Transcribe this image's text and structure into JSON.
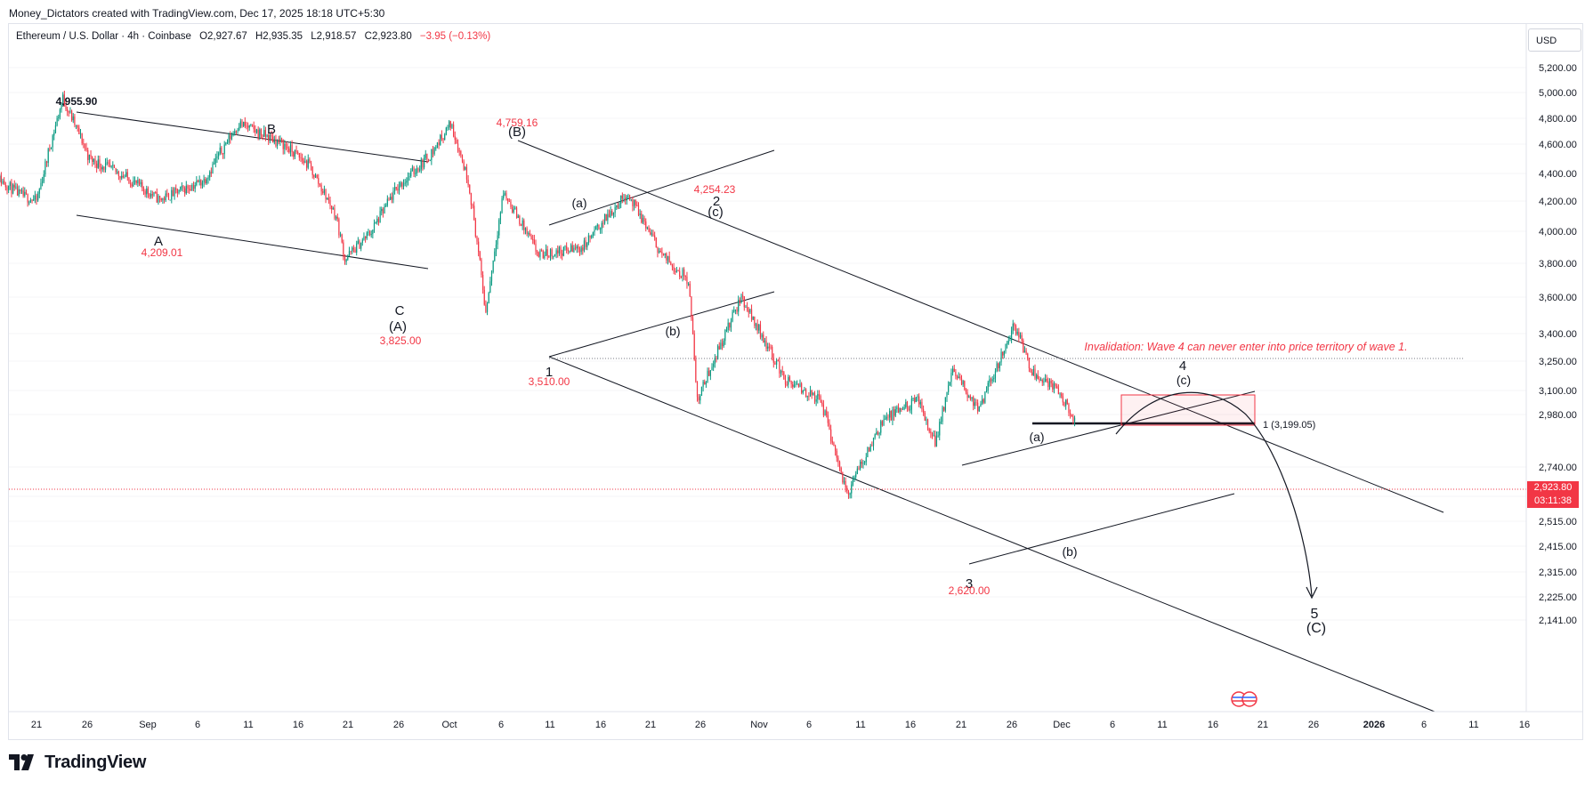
{
  "header": {
    "attribution": "Money_Dictators created with TradingView.com, Dec 17, 2025 18:18 UTC+5:30"
  },
  "legend": {
    "symbol": "Ethereum / U.S. Dollar · 4h · Coinbase",
    "open": "O2,927.67",
    "high": "H2,935.35",
    "low": "L2,918.57",
    "close": "C2,923.80",
    "change": "−3.95 (−0.13%)",
    "change_color": "#f23645"
  },
  "currency_button": "USD",
  "brand": "TradingView",
  "price_tag": {
    "price": "2,923.80",
    "countdown": "03:11:38",
    "color": "#f23645"
  },
  "chart_data": {
    "type": "candlestick",
    "symbol": "ETHUSD",
    "interval": "4h",
    "exchange": "Coinbase",
    "y_axis_labels": [
      "5,200.00",
      "5,000.00",
      "4,800.00",
      "4,600.00",
      "4,400.00",
      "4,200.00",
      "4,000.00",
      "3,800.00",
      "3,600.00",
      "3,400.00",
      "3,250.00",
      "3,100.00",
      "2,980.00",
      "2,740.00",
      "2,615.00",
      "2,515.00",
      "2,415.00",
      "2,315.00",
      "2,225.00",
      "2,141.00"
    ],
    "x_axis_labels": [
      "21",
      "26",
      "Sep",
      "6",
      "11",
      "16",
      "21",
      "26",
      "Oct",
      "6",
      "11",
      "16",
      "21",
      "26",
      "Nov",
      "6",
      "11",
      "16",
      "21",
      "26",
      "Dec",
      "6",
      "11",
      "16",
      "21",
      "26",
      "2026",
      "6",
      "11",
      "16"
    ],
    "last_price": 2923.8,
    "price_series": [
      {
        "x": "2025-08-16",
        "y": 4400
      },
      {
        "x": "2025-08-19",
        "y": 4250
      },
      {
        "x": "2025-08-21",
        "y": 4200
      },
      {
        "x": "2025-08-24",
        "y": 4955.9
      },
      {
        "x": "2025-08-27",
        "y": 4500
      },
      {
        "x": "2025-08-31",
        "y": 4380
      },
      {
        "x": "2025-09-04",
        "y": 4209.01
      },
      {
        "x": "2025-09-09",
        "y": 4350
      },
      {
        "x": "2025-09-13",
        "y": 4760
      },
      {
        "x": "2025-09-18",
        "y": 4600
      },
      {
        "x": "2025-09-21",
        "y": 4450
      },
      {
        "x": "2025-09-24",
        "y": 4100
      },
      {
        "x": "2025-09-25",
        "y": 3825.0
      },
      {
        "x": "2025-09-28",
        "y": 4000
      },
      {
        "x": "2025-10-01",
        "y": 4300
      },
      {
        "x": "2025-10-05",
        "y": 4550
      },
      {
        "x": "2025-10-07",
        "y": 4759.16
      },
      {
        "x": "2025-10-09",
        "y": 4350
      },
      {
        "x": "2025-10-11",
        "y": 3510.0
      },
      {
        "x": "2025-10-13",
        "y": 4260
      },
      {
        "x": "2025-10-17",
        "y": 3850
      },
      {
        "x": "2025-10-22",
        "y": 3900
      },
      {
        "x": "2025-10-27",
        "y": 4254.23
      },
      {
        "x": "2025-10-31",
        "y": 3850
      },
      {
        "x": "2025-11-03",
        "y": 3700
      },
      {
        "x": "2025-11-04",
        "y": 3050
      },
      {
        "x": "2025-11-09",
        "y": 3600
      },
      {
        "x": "2025-11-14",
        "y": 3150
      },
      {
        "x": "2025-11-18",
        "y": 3050
      },
      {
        "x": "2025-11-21",
        "y": 2620.0
      },
      {
        "x": "2025-11-25",
        "y": 2950
      },
      {
        "x": "2025-11-29",
        "y": 3050
      },
      {
        "x": "2025-12-01",
        "y": 2850
      },
      {
        "x": "2025-12-03",
        "y": 3200
      },
      {
        "x": "2025-12-06",
        "y": 3000
      },
      {
        "x": "2025-12-10",
        "y": 3447
      },
      {
        "x": "2025-12-12",
        "y": 3200
      },
      {
        "x": "2025-12-15",
        "y": 3100
      },
      {
        "x": "2025-12-17",
        "y": 2923.8
      }
    ],
    "annotations": [
      {
        "text": "4,955.90",
        "color": "#131722"
      },
      {
        "text": "B",
        "color": "#131722"
      },
      {
        "text": "A",
        "color": "#131722"
      },
      {
        "text": "4,209.01",
        "color": "#f23645"
      },
      {
        "text": "C",
        "color": "#131722"
      },
      {
        "text": "(A)",
        "color": "#131722"
      },
      {
        "text": "3,825.00",
        "color": "#f23645"
      },
      {
        "text": "4,759.16",
        "color": "#f23645"
      },
      {
        "text": "(B)",
        "color": "#131722"
      },
      {
        "text": "4,254.23",
        "color": "#f23645"
      },
      {
        "text": "2",
        "color": "#131722"
      },
      {
        "text": "(c)",
        "color": "#131722"
      },
      {
        "text": "(a)",
        "color": "#131722"
      },
      {
        "text": "(b)",
        "color": "#131722"
      },
      {
        "text": "1",
        "color": "#131722"
      },
      {
        "text": "3,510.00",
        "color": "#f23645"
      },
      {
        "text": "Invalidation: Wave 4 can never enter into price territory of wave 1.",
        "color": "#f23645"
      },
      {
        "text": "4",
        "color": "#131722"
      },
      {
        "text": "(c)",
        "color": "#131722"
      },
      {
        "text": "1 (3,199.05)",
        "color": "#131722"
      },
      {
        "text": "(a)",
        "color": "#131722"
      },
      {
        "text": "(b)",
        "color": "#131722"
      },
      {
        "text": "3",
        "color": "#131722"
      },
      {
        "text": "2,620.00",
        "color": "#f23645"
      },
      {
        "text": "5",
        "color": "#131722"
      },
      {
        "text": "(C)",
        "color": "#131722"
      }
    ],
    "up_color": "#089981",
    "down_color": "#f23645"
  }
}
